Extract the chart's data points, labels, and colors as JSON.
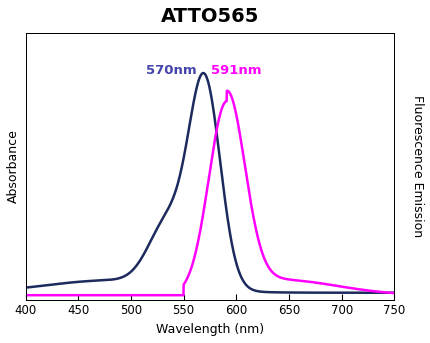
{
  "title": "ATTO565",
  "xlabel": "Wavelength (nm)",
  "ylabel_left": "Absorbance",
  "ylabel_right": "Fluorescence Emission",
  "xlim": [
    400,
    750
  ],
  "xticks": [
    400,
    450,
    500,
    550,
    600,
    650,
    700,
    750
  ],
  "abs_peak": 570,
  "abs_peak_label": "570nm",
  "abs_peak_color": "#4444AA",
  "em_peak": 591,
  "em_peak_label": "591nm",
  "em_peak_color": "#FF00FF",
  "abs_color": "#1C2A5E",
  "em_color": "#FF00FF",
  "fig_bg_color": "#FFFFFF",
  "plot_bg_color": "#FFFFFF",
  "title_fontsize": 14,
  "axis_label_fontsize": 9,
  "tick_fontsize": 8.5,
  "peak_label_fontsize": 9.5
}
